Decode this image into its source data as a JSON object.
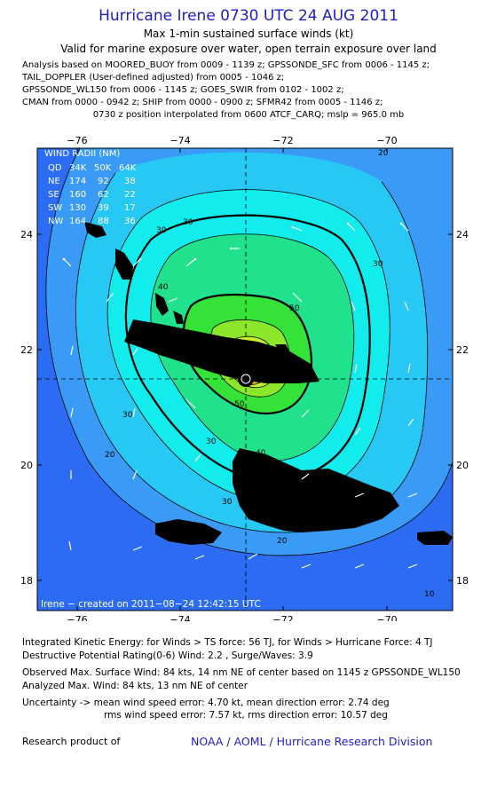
{
  "header": {
    "title": "Hurricane Irene 0730 UTC 24 AUG 2011",
    "subtitle1": "Max 1-min sustained surface winds (kt)",
    "subtitle2": "Valid for marine exposure over water, open terrain exposure over land"
  },
  "analysis_lines": [
    "Analysis based on MOORED_BUOY from 0009 - 1139 z; GPSSONDE_SFC from 0006 - 1145 z;",
    "TAIL_DOPPLER (User-defined adjusted) from 0005 - 1046 z;",
    "GPSSONDE_WL150 from 0006 - 1145 z; GOES_SWIR from 0102 - 1002 z;",
    "CMAN from 0000 - 0942 z; SHIP from 0000 - 0900 z; SFMR42 from 0005 - 1146 z;"
  ],
  "position_note": "0730 z position interpolated from 0600 ATCF_CARQ; mslp = 965.0 mb",
  "map": {
    "lon_labels": [
      "−76",
      "−74",
      "−72",
      "−70"
    ],
    "lat_labels": [
      "24",
      "22",
      "20",
      "18"
    ],
    "contour_labels": [
      "30",
      "30",
      "40",
      "30",
      "30",
      "20",
      "20",
      "40",
      "50",
      "50",
      "30",
      "30",
      "20",
      "10",
      "30"
    ],
    "credit": "Irene − created on 2011−08−24 12:42:15 UTC",
    "colors": {
      "level_0": "#2c6cf2",
      "level_10": "#3a9bf6",
      "level_20": "#28c8f4",
      "level_30": "#12ecec",
      "level_40": "#20e28c",
      "level_50": "#34e238",
      "level_55": "#8ce62a",
      "level_60": "#c8ee24",
      "level_70": "#f0c814",
      "level_75": "#f68c10",
      "level_80": "#e03810",
      "vector": "#ffffff",
      "coast": "#000000"
    }
  },
  "wind_radii": {
    "title": "WIND RADII (NM)",
    "header": [
      "QD",
      "34K",
      "50K",
      "64K"
    ],
    "rows": [
      {
        "q": "NE",
        "r34": "174",
        "r50": "92",
        "r64": "38"
      },
      {
        "q": "SE",
        "r34": "160",
        "r50": "62",
        "r64": "22"
      },
      {
        "q": "SW",
        "r34": "130",
        "r50": "39",
        "r64": "17"
      },
      {
        "q": "NW",
        "r34": "164",
        "r50": "88",
        "r64": "36"
      }
    ]
  },
  "footer": {
    "ike": "Integrated Kinetic Energy:  for Winds > TS force: 56 TJ,  for Winds > Hurricane Force: 4 TJ",
    "dpr": "Destructive Potential Rating(0-6)   Wind: 2.2 , Surge/Waves: 3.9",
    "observed": "Observed Max. Surface Wind: 84 kts, 14 nm NE of center based on 1145 z GPSSONDE_WL150",
    "analyzed": "Analyzed Max. Wind: 84 kts, 13 nm NE of center",
    "unc1": "Uncertainty -> mean wind speed error: 4.70 kt,   mean direction error: 2.74 deg",
    "unc2": "rms wind speed error: 7.57 kt,   rms direction error: 10.57 deg",
    "research_label": "Research product of",
    "research_org": "NOAA / AOML / Hurricane Research Division"
  }
}
